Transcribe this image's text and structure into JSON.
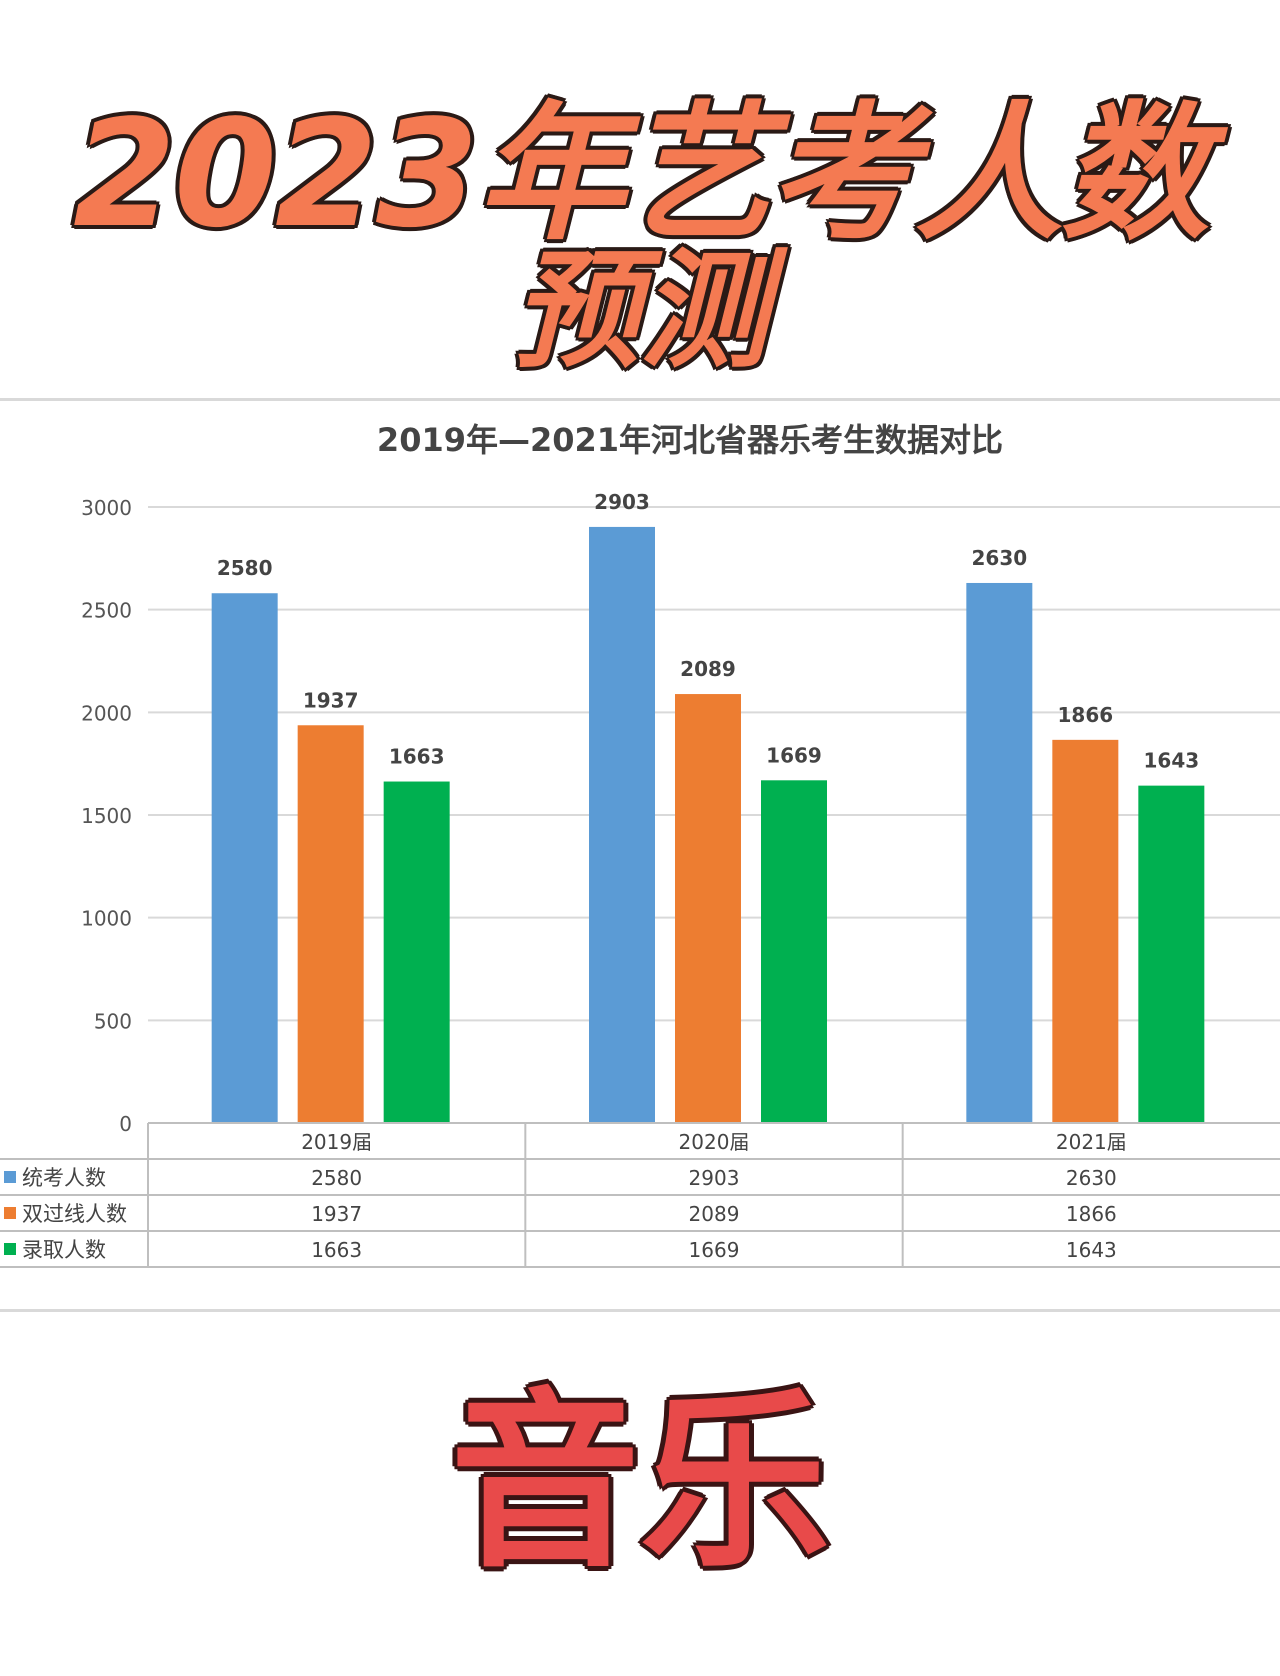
{
  "header": {
    "title_line1": "2023年艺考人数",
    "title_line2": "预测"
  },
  "footer": {
    "title": "音乐"
  },
  "colors": {
    "series1": "#5b9bd5",
    "series2": "#ed7d31",
    "series3": "#00b050",
    "title_fill": "#f47a52",
    "footer_fill": "#e84a4a"
  },
  "chart_data": {
    "type": "bar",
    "title": "2019年—2021年河北省器乐考生数据对比",
    "categories": [
      "2019届",
      "2020届",
      "2021届"
    ],
    "series": [
      {
        "name": "统考人数",
        "values": [
          2580,
          2903,
          2630
        ]
      },
      {
        "name": "双过线人数",
        "values": [
          1937,
          2089,
          1866
        ]
      },
      {
        "name": "录取人数",
        "values": [
          1663,
          1669,
          1643
        ]
      }
    ],
    "yticks": [
      "0",
      "500",
      "1000",
      "1500",
      "2000",
      "2500",
      "3000"
    ],
    "ylim": [
      0,
      3000
    ],
    "grid": true,
    "legend": "data-table-below"
  }
}
